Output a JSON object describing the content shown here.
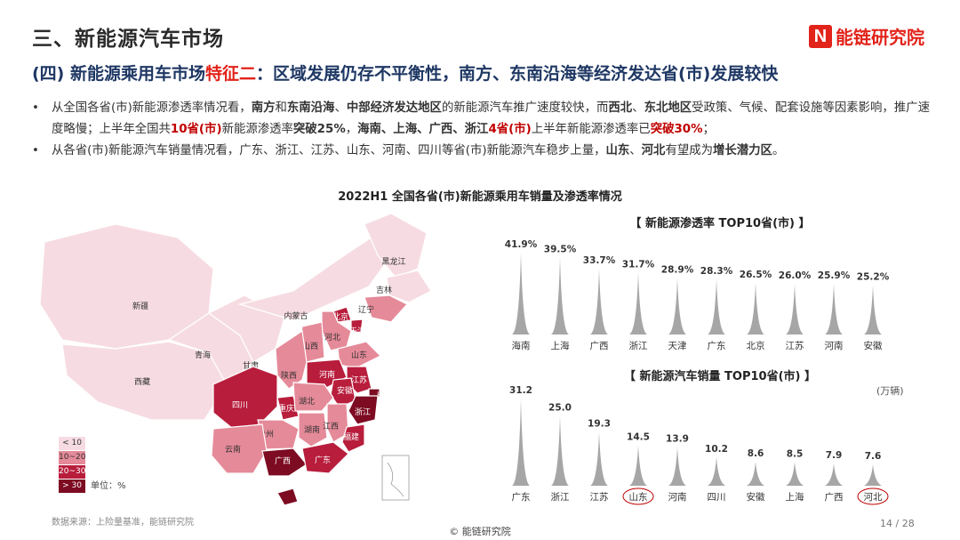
{
  "header": {
    "section_title": "三、新能源汽车市场",
    "brand_mark": "N",
    "brand_name": "能链研究院",
    "subtitle_prefix": "(四) 新能源乘用车市场",
    "subtitle_highlight": "特征二",
    "subtitle_suffix": "：区域发展仍存不平衡性，南方、东南沿海等经济发达省(市)发展较快"
  },
  "bullets": [
    [
      {
        "t": "从全国各省(市)新能源渗透率情况看，",
        "s": ""
      },
      {
        "t": "南方",
        "s": "b"
      },
      {
        "t": "和",
        "s": ""
      },
      {
        "t": "东南沿海",
        "s": "b"
      },
      {
        "t": "、",
        "s": ""
      },
      {
        "t": "中部经济发达地区",
        "s": "b"
      },
      {
        "t": "的新能源汽车推广速度较快，而",
        "s": ""
      },
      {
        "t": "西北",
        "s": "b"
      },
      {
        "t": "、",
        "s": ""
      },
      {
        "t": "东北地区",
        "s": "b"
      },
      {
        "t": "受政策、气候、配套设施等因素影响，推广速度略慢；上半年全国共",
        "s": ""
      },
      {
        "t": "10省(市)",
        "s": "r"
      },
      {
        "t": "新能源渗透率",
        "s": ""
      },
      {
        "t": "突破25%",
        "s": "b"
      },
      {
        "t": "，",
        "s": ""
      },
      {
        "t": "海南、上海、广西、浙江",
        "s": "b"
      },
      {
        "t": "4省(市)",
        "s": "r"
      },
      {
        "t": "上半年新能源渗透率已",
        "s": ""
      },
      {
        "t": "突破30%",
        "s": "r"
      },
      {
        "t": "；",
        "s": ""
      }
    ],
    [
      {
        "t": "从各省(市)新能源汽车销量情况看，广东、浙江、江苏、山东、河南、四川等省(市)新能源汽车稳步上量，",
        "s": ""
      },
      {
        "t": "山东",
        "s": "b"
      },
      {
        "t": "、",
        "s": ""
      },
      {
        "t": "河北",
        "s": "b"
      },
      {
        "t": "有望成为",
        "s": ""
      },
      {
        "t": "增长潜力区",
        "s": "b"
      },
      {
        "t": "。",
        "s": ""
      }
    ]
  ],
  "bullet_symbol": "•",
  "chart_main_title": "2022H1 全国各省(市)新能源乘用车销量及渗透率情况",
  "map": {
    "legend": [
      {
        "label": "< 10",
        "color": "#f6dce2"
      },
      {
        "label": "10~20",
        "color": "#e58a99"
      },
      {
        "label": "20~30",
        "color": "#b81d3c"
      },
      {
        "label": "> 30",
        "color": "#7d0b22"
      }
    ],
    "legend_unit": "单位：%",
    "provinces": [
      {
        "name": "新疆",
        "bin": 0
      },
      {
        "name": "西藏",
        "bin": 0
      },
      {
        "name": "青海",
        "bin": 0
      },
      {
        "name": "甘肃",
        "bin": 0
      },
      {
        "name": "内蒙古",
        "bin": 0
      },
      {
        "name": "黑龙江",
        "bin": 0
      },
      {
        "name": "吉林",
        "bin": 0
      },
      {
        "name": "辽宁",
        "bin": 1
      },
      {
        "name": "北京",
        "bin": 2
      },
      {
        "name": "天津",
        "bin": 2
      },
      {
        "name": "河北",
        "bin": 1
      },
      {
        "name": "山西",
        "bin": 1
      },
      {
        "name": "山东",
        "bin": 1
      },
      {
        "name": "陕西",
        "bin": 1
      },
      {
        "name": "河南",
        "bin": 2
      },
      {
        "name": "江苏",
        "bin": 2
      },
      {
        "name": "安徽",
        "bin": 2
      },
      {
        "name": "上海",
        "bin": 3
      },
      {
        "name": "四川",
        "bin": 2
      },
      {
        "name": "重庆",
        "bin": 2
      },
      {
        "name": "湖北",
        "bin": 1
      },
      {
        "name": "浙江",
        "bin": 3
      },
      {
        "name": "贵州",
        "bin": 1
      },
      {
        "name": "湖南",
        "bin": 1
      },
      {
        "name": "江西",
        "bin": 1
      },
      {
        "name": "福建",
        "bin": 2
      },
      {
        "name": "云南",
        "bin": 1
      },
      {
        "name": "广西",
        "bin": 3
      },
      {
        "name": "广东",
        "bin": 2
      },
      {
        "name": "海南",
        "bin": 3
      }
    ]
  },
  "source": "数据来源：上险量基准，能链研究院",
  "copyright": "© 能链研究院",
  "page_number": "14 / 28",
  "chart_data": [
    {
      "type": "bar",
      "title": "【 新能源渗透率 TOP10省(市) 】",
      "categories": [
        "海南",
        "上海",
        "广西",
        "浙江",
        "天津",
        "广东",
        "北京",
        "江苏",
        "河南",
        "安徽"
      ],
      "values": [
        41.9,
        39.5,
        33.7,
        31.7,
        28.9,
        28.3,
        26.5,
        26.0,
        25.9,
        25.2
      ],
      "value_labels": [
        "41.9%",
        "39.5%",
        "33.7%",
        "31.7%",
        "28.9%",
        "28.3%",
        "26.5%",
        "26.0%",
        "25.9%",
        "25.2%"
      ],
      "bar_color": "#a6a6a6"
    },
    {
      "type": "bar",
      "title": "【 新能源汽车销量 TOP10省(市) 】",
      "unit": "(万辆)",
      "categories": [
        "广东",
        "浙江",
        "江苏",
        "山东",
        "河南",
        "四川",
        "安徽",
        "上海",
        "广西",
        "河北"
      ],
      "values": [
        31.2,
        25.0,
        19.3,
        14.5,
        13.9,
        10.2,
        8.6,
        8.5,
        7.9,
        7.6
      ],
      "value_labels": [
        "31.2",
        "25.0",
        "19.3",
        "14.5",
        "13.9",
        "10.2",
        "8.6",
        "8.5",
        "7.9",
        "7.6"
      ],
      "circled": [
        "山东",
        "河北"
      ],
      "bar_color": "#a6a6a6",
      "circle_color": "#c00000"
    }
  ]
}
